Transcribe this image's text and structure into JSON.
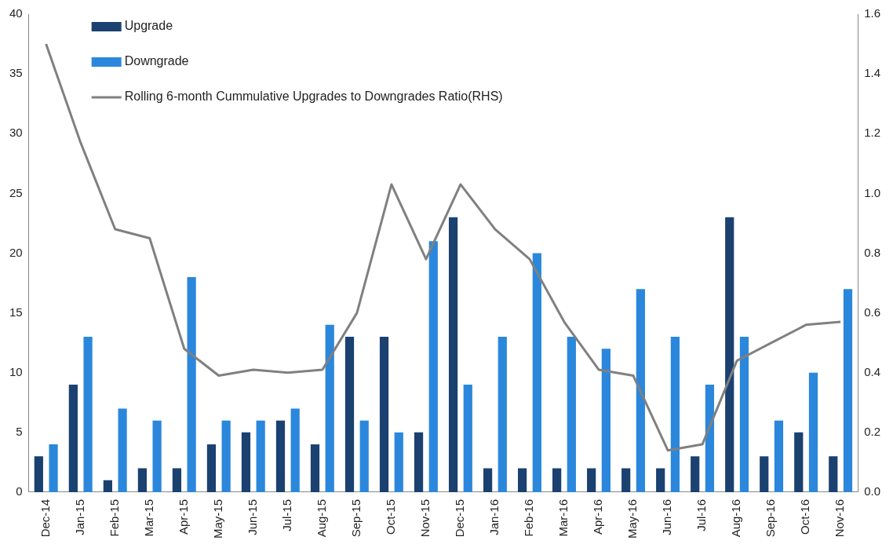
{
  "chart_data": {
    "type": "bar",
    "categories": [
      "Dec-14",
      "Jan-15",
      "Feb-15",
      "Mar-15",
      "Apr-15",
      "May-15",
      "Jun-15",
      "Jul-15",
      "Aug-15",
      "Sep-15",
      "Oct-15",
      "Nov-15",
      "Dec-15",
      "Jan-16",
      "Feb-16",
      "Mar-16",
      "Apr-16",
      "May-16",
      "Jun-16",
      "Jul-16",
      "Aug-16",
      "Sep-16",
      "Oct-16",
      "Nov-16"
    ],
    "series": [
      {
        "name": "Upgrade",
        "color": "#1a4170",
        "values": [
          3,
          9,
          1,
          2,
          2,
          4,
          5,
          6,
          4,
          13,
          13,
          5,
          23,
          2,
          2,
          2,
          2,
          2,
          2,
          3,
          23,
          3,
          5,
          3
        ]
      },
      {
        "name": "Downgrade",
        "color": "#2b87dc",
        "values": [
          4,
          13,
          7,
          6,
          18,
          6,
          6,
          7,
          14,
          6,
          5,
          21,
          9,
          13,
          20,
          13,
          12,
          17,
          13,
          9,
          13,
          6,
          10,
          17
        ]
      },
      {
        "name": "Rolling 6-month Cummulative Upgrades to Downgrades Ratio(RHS)",
        "type": "line",
        "axis": "y2",
        "color": "#808080",
        "values": [
          1.5,
          1.17,
          0.88,
          0.85,
          0.48,
          0.39,
          0.41,
          0.4,
          0.41,
          0.6,
          1.03,
          0.78,
          1.03,
          0.88,
          0.78,
          0.57,
          0.41,
          0.39,
          0.14,
          0.16,
          0.44,
          0.5,
          0.56,
          0.57
        ]
      }
    ],
    "ylim": [
      0,
      40
    ],
    "yticks": [
      0,
      5,
      10,
      15,
      20,
      25,
      30,
      35,
      40
    ],
    "y2lim": [
      0,
      1.6
    ],
    "y2ticks": [
      {
        "value": 0,
        "label": "0.0"
      },
      {
        "value": 0.2,
        "label": "0.2"
      },
      {
        "value": 0.4,
        "label": "0.4"
      },
      {
        "value": 0.6,
        "label": "0.6"
      },
      {
        "value": 0.8,
        "label": "0.8"
      },
      {
        "value": 1.0,
        "label": "1.0"
      },
      {
        "value": 1.2,
        "label": "1.2"
      },
      {
        "value": 1.4,
        "label": "1.4"
      },
      {
        "value": 1.6,
        "label": "1.6"
      }
    ],
    "grid": false,
    "legend": "top left",
    "marker": "none"
  }
}
